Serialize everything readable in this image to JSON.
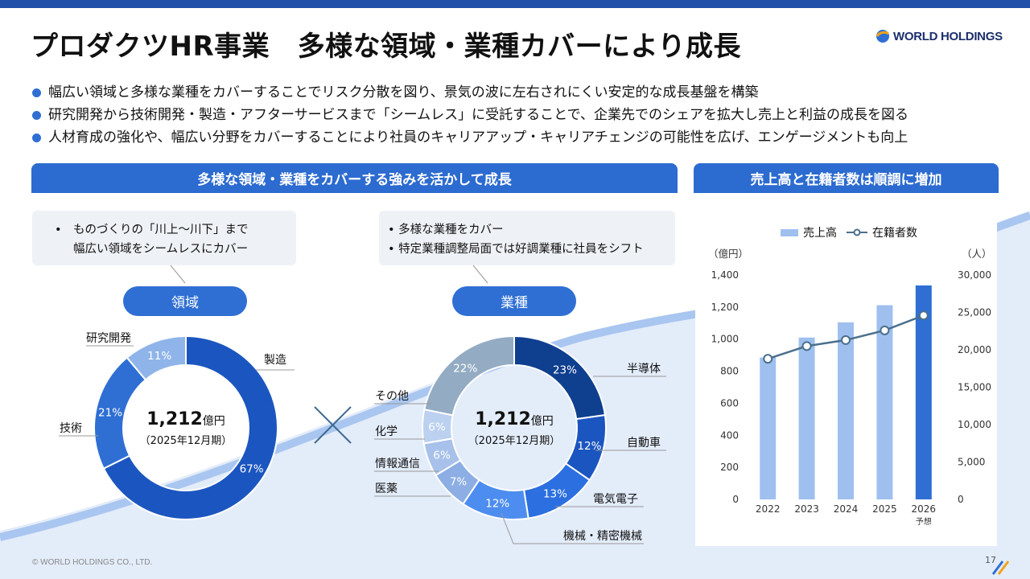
{
  "title": "プロダクツHR事業　多様な領域・業種カバーにより成長",
  "logo": {
    "name": "WORLD HOLDINGS",
    "colors": [
      "#f2a31b",
      "#2f6fd4",
      "#1c2f6b"
    ]
  },
  "bullets": [
    "幅広い領域と多様な業種をカバーすることでリスク分散を図り、景気の波に左右されにくい安定的な成長基盤を構築",
    "研究開発から技術開発・製造・アフターサービスまで「シームレス」に受託することで、企業先でのシェアを拡大し売上と利益の成長を図る",
    "人材育成の強化や、幅広い分野をカバーすることにより社員のキャリアアップ・キャリアチェンジの可能性を広げ、エンゲージメントも向上"
  ],
  "left_band": "多様な領域・業種をカバーする強みを活かして成長",
  "right_band": "売上高と在籍者数は順調に増加",
  "callout_left": [
    "•　ものづくりの「川上～川下」まで",
    "幅広い領域をシームレスにカバー"
  ],
  "callout_right": [
    "• 多様な業種をカバー",
    "• 特定業種調整局面では好調業種に社員をシフト"
  ],
  "pill_domain": "領域",
  "pill_industry": "業種",
  "donut_center": {
    "value": "1,212",
    "unit": "億円",
    "sub": "（2025年12月期）"
  },
  "colors": {
    "accent": "#2c6bd0",
    "bullet": "#2f6fd4",
    "bar_light": "#9fc0ef",
    "bar_forecast": "#2f6fd4",
    "line": "#4a6f8c"
  },
  "chart_data": [
    {
      "type": "pie",
      "variant": "donut",
      "name": "領域",
      "categories": [
        "製造",
        "技術",
        "研究開発"
      ],
      "values": [
        67,
        21,
        11
      ],
      "value_labels": [
        "67%",
        "21%",
        "11%"
      ],
      "colors": [
        "#1b56c0",
        "#2f6fd4",
        "#8fb4ea"
      ]
    },
    {
      "type": "pie",
      "variant": "donut",
      "name": "業種",
      "categories": [
        "半導体",
        "自動車",
        "電気電子",
        "機械・精密機械",
        "医薬",
        "情報通信",
        "化学",
        "その他"
      ],
      "values": [
        23,
        12,
        13,
        12,
        7,
        6,
        6,
        22
      ],
      "value_labels": [
        "23%",
        "12%",
        "13%",
        "12%",
        "7%",
        "6%",
        "6%",
        "22%"
      ],
      "colors": [
        "#0f3f8f",
        "#1b56c0",
        "#2b6fe0",
        "#4d8df0",
        "#8caee4",
        "#a8c1ea",
        "#bcd0ef",
        "#93abc3"
      ]
    },
    {
      "type": "bar",
      "combo": "bar+line",
      "categories": [
        "2022",
        "2023",
        "2024",
        "2025",
        "2026"
      ],
      "category_notes": [
        "",
        "",
        "",
        "",
        "予想"
      ],
      "series": [
        {
          "name": "売上高",
          "kind": "bar",
          "axis": "left",
          "values": [
            885,
            1010,
            1105,
            1212,
            1335
          ]
        },
        {
          "name": "在籍者数",
          "kind": "line",
          "axis": "right",
          "values": [
            18800,
            20500,
            21300,
            22600,
            24600
          ]
        }
      ],
      "left_unit": "（億円）",
      "right_unit": "（人）",
      "ylim_left": [
        0,
        1400
      ],
      "ylim_right": [
        0,
        30000
      ],
      "yticks_left": [
        "0",
        "200",
        "400",
        "600",
        "800",
        "1,000",
        "1,200",
        "1,400"
      ],
      "yticks_right": [
        "0",
        "5,000",
        "10,000",
        "15,000",
        "20,000",
        "25,000",
        "30,000"
      ],
      "legend_position": "top",
      "grid": false
    }
  ],
  "footer": {
    "copyright": "© WORLD HOLDINGS CO., LTD.",
    "page": "17"
  }
}
